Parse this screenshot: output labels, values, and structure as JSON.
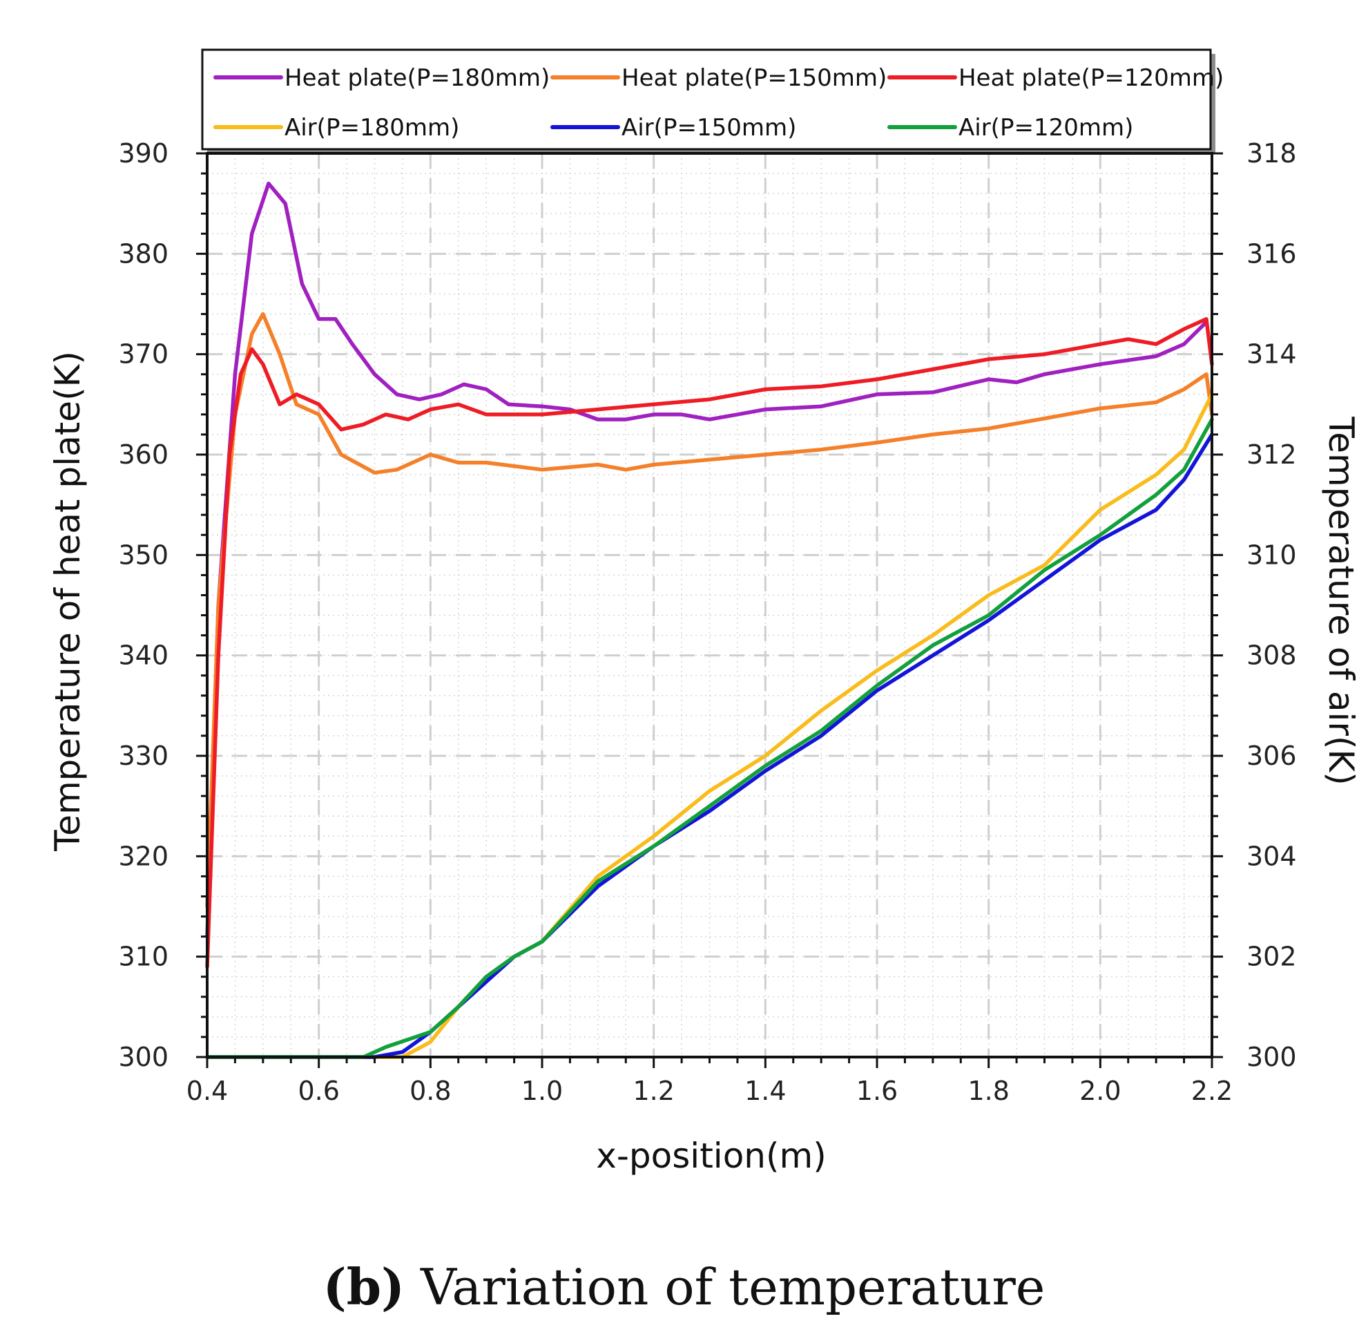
{
  "chart_data": {
    "type": "line",
    "xlabel": "x-position(m)",
    "ylabel_left": "Temperature of heat plate(K)",
    "ylabel_right": "Temperature of air(K)",
    "xlim": [
      0.4,
      2.2
    ],
    "ylim_left": [
      300,
      390
    ],
    "ylim_right": [
      300,
      318
    ],
    "x_ticks": [
      "0.4",
      "0.6",
      "0.8",
      "1.0",
      "1.2",
      "1.4",
      "1.6",
      "1.8",
      "2.0",
      "2.2"
    ],
    "y_ticks_left": [
      "300",
      "310",
      "320",
      "330",
      "340",
      "350",
      "360",
      "370",
      "380",
      "390"
    ],
    "y_ticks_right": [
      "300",
      "302",
      "304",
      "306",
      "308",
      "310",
      "312",
      "314",
      "316",
      "318"
    ],
    "grid": true,
    "legend_position": "top",
    "series": [
      {
        "name": "Heat plate(P=180mm)",
        "axis": "left",
        "color": "#a020c0",
        "points": [
          [
            0.4,
            312
          ],
          [
            0.42,
            345
          ],
          [
            0.45,
            368
          ],
          [
            0.48,
            382
          ],
          [
            0.51,
            387
          ],
          [
            0.54,
            385
          ],
          [
            0.57,
            377
          ],
          [
            0.6,
            373.5
          ],
          [
            0.63,
            373.5
          ],
          [
            0.66,
            371
          ],
          [
            0.7,
            368
          ],
          [
            0.74,
            366
          ],
          [
            0.78,
            365.5
          ],
          [
            0.82,
            366
          ],
          [
            0.86,
            367
          ],
          [
            0.9,
            366.5
          ],
          [
            0.94,
            365
          ],
          [
            1.0,
            364.8
          ],
          [
            1.05,
            364.5
          ],
          [
            1.1,
            363.5
          ],
          [
            1.15,
            363.5
          ],
          [
            1.2,
            364
          ],
          [
            1.25,
            364
          ],
          [
            1.3,
            363.5
          ],
          [
            1.35,
            364
          ],
          [
            1.4,
            364.5
          ],
          [
            1.5,
            364.8
          ],
          [
            1.6,
            366
          ],
          [
            1.7,
            366.2
          ],
          [
            1.8,
            367.5
          ],
          [
            1.85,
            367.2
          ],
          [
            1.9,
            368
          ],
          [
            2.0,
            369
          ],
          [
            2.1,
            369.8
          ],
          [
            2.15,
            371
          ],
          [
            2.19,
            373.2
          ]
        ]
      },
      {
        "name": "Heat plate(P=150mm)",
        "axis": "left",
        "color": "#f4802a",
        "points": [
          [
            0.4,
            315
          ],
          [
            0.42,
            345
          ],
          [
            0.45,
            364
          ],
          [
            0.48,
            372
          ],
          [
            0.5,
            374
          ],
          [
            0.53,
            370
          ],
          [
            0.56,
            365
          ],
          [
            0.6,
            364
          ],
          [
            0.64,
            360
          ],
          [
            0.7,
            358.2
          ],
          [
            0.74,
            358.5
          ],
          [
            0.8,
            360
          ],
          [
            0.85,
            359.2
          ],
          [
            0.9,
            359.2
          ],
          [
            1.0,
            358.5
          ],
          [
            1.1,
            359
          ],
          [
            1.15,
            358.5
          ],
          [
            1.2,
            359
          ],
          [
            1.3,
            359.5
          ],
          [
            1.4,
            360
          ],
          [
            1.5,
            360.5
          ],
          [
            1.6,
            361.2
          ],
          [
            1.7,
            362
          ],
          [
            1.8,
            362.6
          ],
          [
            1.9,
            363.6
          ],
          [
            2.0,
            364.6
          ],
          [
            2.1,
            365.2
          ],
          [
            2.15,
            366.5
          ],
          [
            2.19,
            368
          ],
          [
            2.2,
            364
          ]
        ]
      },
      {
        "name": "Heat plate(P=120mm)",
        "axis": "left",
        "color": "#ee1c24",
        "points": [
          [
            0.4,
            309
          ],
          [
            0.42,
            340
          ],
          [
            0.44,
            360
          ],
          [
            0.46,
            368
          ],
          [
            0.48,
            370.5
          ],
          [
            0.5,
            369
          ],
          [
            0.53,
            365
          ],
          [
            0.56,
            366
          ],
          [
            0.6,
            365
          ],
          [
            0.64,
            362.5
          ],
          [
            0.68,
            363
          ],
          [
            0.72,
            364
          ],
          [
            0.76,
            363.5
          ],
          [
            0.8,
            364.5
          ],
          [
            0.85,
            365
          ],
          [
            0.9,
            364
          ],
          [
            1.0,
            364
          ],
          [
            1.1,
            364.5
          ],
          [
            1.2,
            365
          ],
          [
            1.3,
            365.5
          ],
          [
            1.4,
            366.5
          ],
          [
            1.5,
            366.8
          ],
          [
            1.6,
            367.5
          ],
          [
            1.7,
            368.5
          ],
          [
            1.8,
            369.5
          ],
          [
            1.9,
            370
          ],
          [
            2.0,
            371
          ],
          [
            2.05,
            371.5
          ],
          [
            2.1,
            371
          ],
          [
            2.15,
            372.5
          ],
          [
            2.19,
            373.5
          ],
          [
            2.2,
            369
          ]
        ]
      },
      {
        "name": "Air(P=180mm)",
        "axis": "right",
        "color": "#f9bc1c",
        "points": [
          [
            0.4,
            300
          ],
          [
            0.7,
            300
          ],
          [
            0.75,
            300
          ],
          [
            0.8,
            300.3
          ],
          [
            0.85,
            301
          ],
          [
            0.9,
            301.6
          ],
          [
            0.95,
            302
          ],
          [
            1.0,
            302.3
          ],
          [
            1.1,
            303.6
          ],
          [
            1.2,
            304.4
          ],
          [
            1.3,
            305.3
          ],
          [
            1.4,
            306.0
          ],
          [
            1.5,
            306.9
          ],
          [
            1.6,
            307.7
          ],
          [
            1.7,
            308.4
          ],
          [
            1.8,
            309.2
          ],
          [
            1.9,
            309.8
          ],
          [
            2.0,
            310.9
          ],
          [
            2.1,
            311.6
          ],
          [
            2.15,
            312.1
          ],
          [
            2.2,
            313.2
          ]
        ]
      },
      {
        "name": "Air(P=150mm)",
        "axis": "right",
        "color": "#1414d8",
        "points": [
          [
            0.4,
            300
          ],
          [
            0.7,
            300
          ],
          [
            0.75,
            300.1
          ],
          [
            0.8,
            300.5
          ],
          [
            0.85,
            301
          ],
          [
            0.9,
            301.5
          ],
          [
            0.95,
            302
          ],
          [
            1.0,
            302.3
          ],
          [
            1.1,
            303.4
          ],
          [
            1.2,
            304.2
          ],
          [
            1.3,
            304.9
          ],
          [
            1.4,
            305.7
          ],
          [
            1.5,
            306.4
          ],
          [
            1.6,
            307.3
          ],
          [
            1.7,
            308.0
          ],
          [
            1.8,
            308.7
          ],
          [
            1.9,
            309.5
          ],
          [
            2.0,
            310.3
          ],
          [
            2.1,
            310.9
          ],
          [
            2.15,
            311.5
          ],
          [
            2.2,
            312.4
          ]
        ]
      },
      {
        "name": "Air(P=120mm)",
        "axis": "right",
        "color": "#12a03c",
        "points": [
          [
            0.4,
            300
          ],
          [
            0.68,
            300
          ],
          [
            0.72,
            300.2
          ],
          [
            0.8,
            300.5
          ],
          [
            0.85,
            301
          ],
          [
            0.9,
            301.6
          ],
          [
            0.95,
            302
          ],
          [
            1.0,
            302.3
          ],
          [
            1.1,
            303.5
          ],
          [
            1.2,
            304.2
          ],
          [
            1.3,
            305.0
          ],
          [
            1.4,
            305.8
          ],
          [
            1.5,
            306.5
          ],
          [
            1.6,
            307.4
          ],
          [
            1.7,
            308.2
          ],
          [
            1.8,
            308.8
          ],
          [
            1.9,
            309.7
          ],
          [
            2.0,
            310.4
          ],
          [
            2.1,
            311.2
          ],
          [
            2.15,
            311.7
          ],
          [
            2.2,
            312.7
          ]
        ]
      }
    ]
  },
  "caption": {
    "letter": "(b)",
    "text": "Variation of temperature"
  }
}
